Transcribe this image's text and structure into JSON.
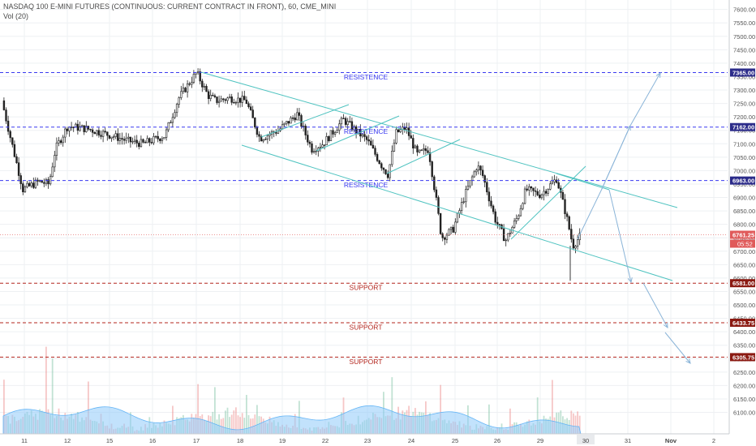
{
  "header": {
    "title": "NASDAQ 100 E-MINI FUTURES (CONTINUOUS: CURRENT CONTRACT IN FRONT), 60, CME_MINI",
    "indicator": "Vol (20)"
  },
  "chart_data": {
    "type": "candlestick",
    "ylim": [
      6070,
      7620
    ],
    "y_ticks": [
      6100,
      6150,
      6200,
      6250,
      6300,
      6350,
      6400,
      6450,
      6500,
      6550,
      6600,
      6650,
      6700,
      6750,
      6800,
      6850,
      6900,
      6950,
      7000,
      7050,
      7100,
      7150,
      7200,
      7250,
      7300,
      7350,
      7400,
      7450,
      7500,
      7550,
      7600
    ],
    "x_ticks": [
      "11",
      "12",
      "15",
      "16",
      "17",
      "18",
      "19",
      "22",
      "23",
      "24",
      "25",
      "26",
      "29",
      "30",
      "31",
      "Nov",
      "2"
    ],
    "highlight_x_tick": "30",
    "price_tags": {
      "resistance_upper": "7365.00",
      "resistance_mid": "7162.00",
      "resistance_lower": "6963.00",
      "last_price": "6761.25",
      "countdown": "05:52",
      "support_1": "6581.00",
      "support_2": "6433.75",
      "support_3": "6305.75"
    },
    "levels": [
      {
        "label": "RESISTENCE",
        "value": 7365.0,
        "tag": "7365.00",
        "color": "#3a3af0"
      },
      {
        "label": "RESISTENCE",
        "value": 7162.0,
        "tag": "7162.00",
        "color": "#3a3af0"
      },
      {
        "label": "RESISTENCE",
        "value": 6963.0,
        "tag": "6963.00",
        "color": "#3a3af0"
      },
      {
        "label": "SUPPORT",
        "value": 6581.0,
        "tag": "6581.00",
        "color": "#b3261e"
      },
      {
        "label": "SUPPORT",
        "value": 6433.75,
        "tag": "6433.75",
        "color": "#b3261e"
      },
      {
        "label": "SUPPORT",
        "value": 6305.75,
        "tag": "6305.75",
        "color": "#b3261e"
      }
    ],
    "last_price": 6761.25,
    "colors": {
      "up": "#26a69a",
      "down": "#ef5350",
      "candle": "#222222",
      "channel": "#4fc3c0",
      "projection": "#8ab4d8",
      "resistance": "#3a3af0",
      "support": "#b3261e",
      "last_line": "#e57373",
      "volume_area": "#90caf9"
    }
  }
}
